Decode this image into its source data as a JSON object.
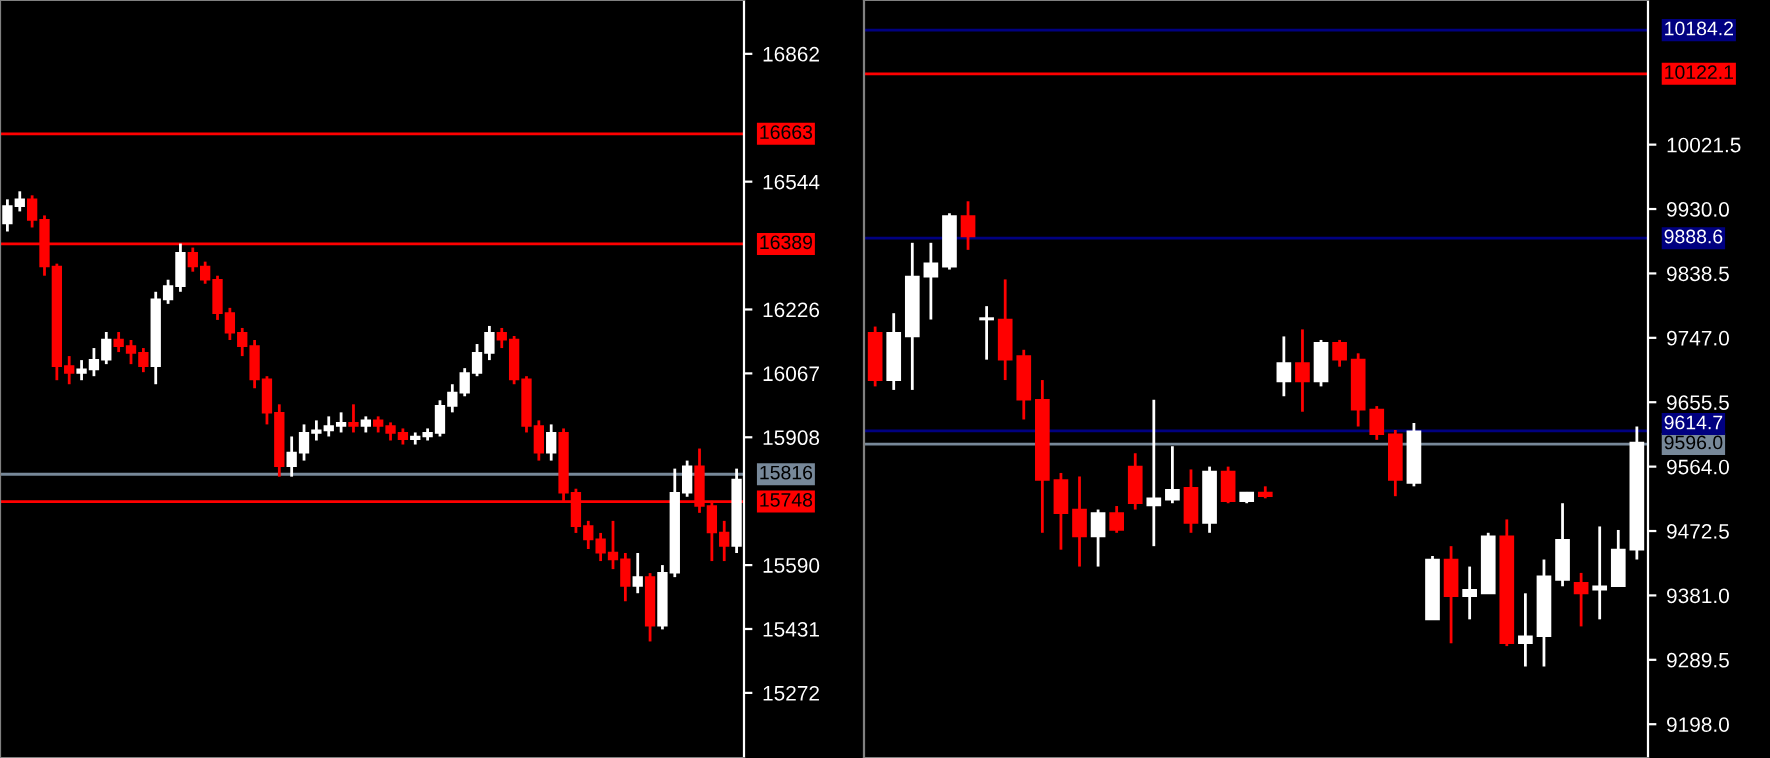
{
  "chart_data": [
    {
      "type": "candlestick",
      "categories": [
        null,
        null,
        null,
        null,
        null,
        null,
        null,
        null,
        null,
        null,
        null,
        null,
        null,
        null,
        null,
        null,
        null,
        null,
        null,
        null,
        null,
        null,
        null,
        null,
        null,
        null,
        null,
        null,
        null,
        null,
        null,
        null,
        null,
        null,
        null,
        null,
        null,
        null,
        null,
        null,
        null,
        null,
        null,
        null,
        null,
        null,
        null,
        null,
        null,
        null,
        null,
        null,
        null,
        null,
        null,
        null,
        null,
        null,
        null,
        null
      ],
      "ohlc": [
        [
          16440,
          16500,
          16420,
          16483
        ],
        [
          16483,
          16520,
          16470,
          16500
        ],
        [
          16500,
          16510,
          16430,
          16449
        ],
        [
          16449,
          16460,
          16310,
          16333
        ],
        [
          16333,
          16340,
          16050,
          16085
        ],
        [
          16085,
          16110,
          16040,
          16068
        ],
        [
          16068,
          16100,
          16050,
          16077
        ],
        [
          16077,
          16130,
          16060,
          16101
        ],
        [
          16101,
          16170,
          16090,
          16151
        ],
        [
          16151,
          16170,
          16120,
          16135
        ],
        [
          16135,
          16150,
          16090,
          16118
        ],
        [
          16118,
          16130,
          16070,
          16085
        ],
        [
          16085,
          16270,
          16040,
          16251
        ],
        [
          16251,
          16300,
          16240,
          16284
        ],
        [
          16284,
          16390,
          16270,
          16367
        ],
        [
          16367,
          16380,
          16320,
          16333
        ],
        [
          16333,
          16345,
          16290,
          16300
        ],
        [
          16300,
          16310,
          16200,
          16217
        ],
        [
          16217,
          16230,
          16150,
          16168
        ],
        [
          16168,
          16180,
          16110,
          16135
        ],
        [
          16135,
          16150,
          16030,
          16052
        ],
        [
          16052,
          16060,
          15940,
          15969
        ],
        [
          15969,
          15990,
          15810,
          15836
        ],
        [
          15836,
          15910,
          15810,
          15870
        ],
        [
          15870,
          15940,
          15850,
          15919
        ],
        [
          15919,
          15950,
          15900,
          15925
        ],
        [
          15925,
          15960,
          15910,
          15936
        ],
        [
          15936,
          15970,
          15920,
          15944
        ],
        [
          15944,
          15990,
          15920,
          15936
        ],
        [
          15936,
          15960,
          15920,
          15950
        ],
        [
          15950,
          15960,
          15920,
          15936
        ],
        [
          15936,
          15945,
          15900,
          15919
        ],
        [
          15919,
          15930,
          15890,
          15903
        ],
        [
          15903,
          15920,
          15890,
          15910
        ],
        [
          15910,
          15930,
          15900,
          15919
        ],
        [
          15919,
          16000,
          15910,
          15986
        ],
        [
          15986,
          16040,
          15970,
          16019
        ],
        [
          16019,
          16080,
          16010,
          16068
        ],
        [
          16068,
          16140,
          16060,
          16118
        ],
        [
          16118,
          16185,
          16100,
          16168
        ],
        [
          16168,
          16180,
          16130,
          16151
        ],
        [
          16151,
          16160,
          16040,
          16052
        ],
        [
          16052,
          16060,
          15920,
          15936
        ],
        [
          15936,
          15950,
          15850,
          15870
        ],
        [
          15870,
          15940,
          15850,
          15919
        ],
        [
          15919,
          15930,
          15750,
          15770
        ],
        [
          15770,
          15780,
          15670,
          15687
        ],
        [
          15687,
          15700,
          15630,
          15654
        ],
        [
          15654,
          15670,
          15600,
          15621
        ],
        [
          15621,
          15700,
          15580,
          15604
        ],
        [
          15604,
          15620,
          15500,
          15538
        ],
        [
          15538,
          15620,
          15520,
          15560
        ],
        [
          15560,
          15570,
          15400,
          15439
        ],
        [
          15439,
          15590,
          15430,
          15571
        ],
        [
          15571,
          15830,
          15560,
          15770
        ],
        [
          15770,
          15850,
          15760,
          15836
        ],
        [
          15836,
          15880,
          15720,
          15737
        ],
        [
          15737,
          15750,
          15600,
          15671
        ],
        [
          15671,
          15700,
          15600,
          15638
        ],
        [
          15638,
          15830,
          15620,
          15803
        ]
      ],
      "colors": [
        "#ffffff",
        "#ffffff",
        "#ff0000",
        "#ff0000",
        "#ff0000",
        "#ff0000",
        "#ffffff",
        "#ffffff",
        "#ffffff",
        "#ff0000",
        "#ff0000",
        "#ff0000",
        "#ffffff",
        "#ffffff",
        "#ffffff",
        "#ff0000",
        "#ff0000",
        "#ff0000",
        "#ff0000",
        "#ff0000",
        "#ff0000",
        "#ff0000",
        "#ff0000",
        "#ffffff",
        "#ffffff",
        "#ffffff",
        "#ffffff",
        "#ffffff",
        "#ff0000",
        "#ffffff",
        "#ff0000",
        "#ff0000",
        "#ff0000",
        "#ffffff",
        "#ffffff",
        "#ffffff",
        "#ffffff",
        "#ffffff",
        "#ffffff",
        "#ffffff",
        "#ff0000",
        "#ff0000",
        "#ff0000",
        "#ff0000",
        "#ffffff",
        "#ff0000",
        "#ff0000",
        "#ff0000",
        "#ff0000",
        "#ff0000",
        "#ff0000",
        "#ffffff",
        "#ff0000",
        "#ffffff",
        "#ffffff",
        "#ffffff",
        "#ff0000",
        "#ff0000",
        "#ff0000",
        "#ffffff"
      ],
      "ylim": [
        15110,
        16996
      ],
      "yticks": [
        15272,
        15431,
        15590,
        15908,
        16067,
        16226,
        16544,
        16862
      ],
      "ref_lines": [
        {
          "axis": "y",
          "value": 16663,
          "label": "16663",
          "color": "#ff0000"
        },
        {
          "axis": "y",
          "value": 16389,
          "label": "16389",
          "color": "#ff0000"
        },
        {
          "axis": "y",
          "value": 15816,
          "label": "15816",
          "color": "#778899"
        },
        {
          "axis": "y",
          "value": 15748,
          "label": "15748",
          "color": "#ff0000"
        }
      ],
      "grid": false
    },
    {
      "type": "candlestick",
      "categories": [
        null,
        null,
        null,
        null,
        null,
        null,
        null,
        null,
        null,
        null,
        null,
        null,
        null,
        null,
        null,
        null,
        null,
        null,
        null,
        null,
        null,
        null,
        null,
        null,
        null,
        null,
        null,
        null,
        null,
        null,
        null,
        null,
        null,
        null,
        null,
        null,
        null,
        null,
        null,
        null,
        null,
        null
      ],
      "ohlc": [
        [
          9754,
          9763,
          9678,
          9687
        ],
        [
          9687,
          9782,
          9673,
          9754
        ],
        [
          9749,
          9882,
          9673,
          9834
        ],
        [
          9834,
          9882,
          9773,
          9853
        ],
        [
          9848,
          9924,
          9844,
          9920
        ],
        [
          9920,
          9941,
          9872,
          9891
        ],
        [
          9773,
          9792,
          9716,
          9775
        ],
        [
          9773,
          9830,
          9687,
          9716
        ],
        [
          9721,
          9730,
          9631,
          9659
        ],
        [
          9659,
          9687,
          9470,
          9545
        ],
        [
          9545,
          9555,
          9446,
          9498
        ],
        [
          9503,
          9550,
          9422,
          9465
        ],
        [
          9465,
          9503,
          9422,
          9498
        ],
        [
          9498,
          9508,
          9470,
          9474
        ],
        [
          9564,
          9583,
          9503,
          9512
        ],
        [
          9509,
          9659,
          9451,
          9519
        ],
        [
          9517,
          9593,
          9512,
          9531
        ],
        [
          9534,
          9560,
          9470,
          9484
        ],
        [
          9484,
          9564,
          9470,
          9557
        ],
        [
          9557,
          9564,
          9512,
          9515
        ],
        [
          9515,
          9528,
          9512,
          9527
        ],
        [
          9527,
          9536,
          9519,
          9522
        ],
        [
          9685,
          9749,
          9664,
          9711
        ],
        [
          9711,
          9759,
          9642,
          9685
        ],
        [
          9685,
          9744,
          9678,
          9740
        ],
        [
          9740,
          9744,
          9706,
          9716
        ],
        [
          9716,
          9725,
          9621,
          9645
        ],
        [
          9645,
          9650,
          9602,
          9610
        ],
        [
          9610,
          9616,
          9522,
          9545
        ],
        [
          9541,
          9626,
          9536,
          9614
        ],
        [
          9347,
          9437,
          9347,
          9432
        ],
        [
          9432,
          9451,
          9313,
          9380
        ],
        [
          9380,
          9422,
          9347,
          9389
        ],
        [
          9384,
          9470,
          9384,
          9465
        ],
        [
          9465,
          9489,
          9309,
          9313
        ],
        [
          9313,
          9384,
          9280,
          9323
        ],
        [
          9323,
          9432,
          9280,
          9408
        ],
        [
          9403,
          9512,
          9394,
          9460
        ],
        [
          9399,
          9413,
          9337,
          9384
        ],
        [
          9389,
          9479,
          9347,
          9394
        ],
        [
          9394,
          9474,
          9394,
          9446
        ],
        [
          9446,
          9621,
          9432,
          9598
        ]
      ],
      "colors": [
        "#ff0000",
        "#ffffff",
        "#ffffff",
        "#ffffff",
        "#ffffff",
        "#ff0000",
        "#ffffff",
        "#ff0000",
        "#ff0000",
        "#ff0000",
        "#ff0000",
        "#ff0000",
        "#ffffff",
        "#ff0000",
        "#ff0000",
        "#ffffff",
        "#ffffff",
        "#ff0000",
        "#ffffff",
        "#ff0000",
        "#ffffff",
        "#ff0000",
        "#ffffff",
        "#ff0000",
        "#ffffff",
        "#ff0000",
        "#ff0000",
        "#ff0000",
        "#ff0000",
        "#ffffff",
        "#ffffff",
        "#ff0000",
        "#ffffff",
        "#ffffff",
        "#ff0000",
        "#ffffff",
        "#ffffff",
        "#ffffff",
        "#ff0000",
        "#ffffff",
        "#ffffff",
        "#ffffff"
      ],
      "ylim": [
        9150,
        10227
      ],
      "yticks": [
        {
          "value": 9198,
          "label": "9198.0"
        },
        {
          "value": 9289.5,
          "label": "9289.5"
        },
        {
          "value": 9381,
          "label": "9381.0"
        },
        {
          "value": 9472.5,
          "label": "9472.5"
        },
        {
          "value": 9564,
          "label": "9564.0"
        },
        {
          "value": 9655.5,
          "label": "9655.5"
        },
        {
          "value": 9747,
          "label": "9747.0"
        },
        {
          "value": 9838.5,
          "label": "9838.5"
        },
        {
          "value": 9930,
          "label": "9930.0"
        },
        {
          "value": 10021.5,
          "label": "10021.5"
        }
      ],
      "ref_lines": [
        {
          "axis": "y",
          "value": 10184.2,
          "label": "10184.2",
          "color": "#000080"
        },
        {
          "axis": "y",
          "value": 10122.1,
          "label": "10122.1",
          "color": "#ff0000"
        },
        {
          "axis": "y",
          "value": 9888.6,
          "label": "9888.6",
          "color": "#000080"
        },
        {
          "axis": "y",
          "value": 9614.7,
          "label": "9614.7",
          "color": "#000080"
        },
        {
          "axis": "y",
          "value": 9596.0,
          "label": "9596.0",
          "color": "#778899"
        }
      ],
      "grid": false
    }
  ]
}
